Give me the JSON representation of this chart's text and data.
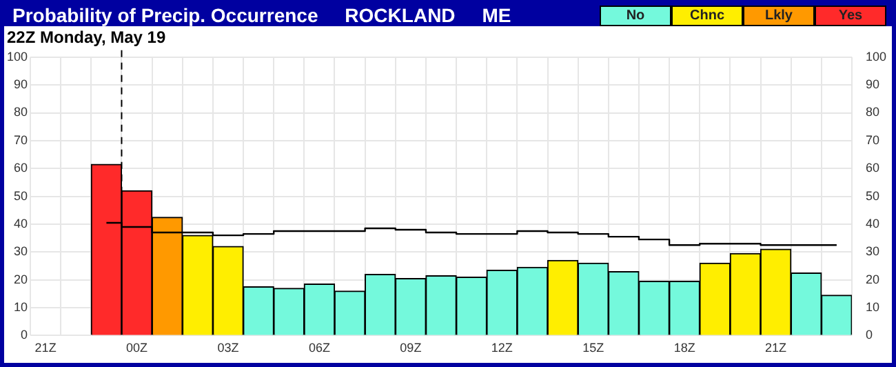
{
  "chart_data": {
    "type": "bar",
    "title": "Probability of Precip. Occurrence     ROCKLAND     ME",
    "subtitle": "22Z Monday, May 19",
    "categories": [
      "21Z",
      null,
      null,
      "00Z",
      null,
      null,
      "03Z",
      null,
      null,
      "06Z",
      null,
      null,
      "09Z",
      null,
      null,
      "12Z",
      null,
      null,
      "15Z",
      null,
      null,
      "18Z",
      null,
      null,
      "21Z",
      null,
      null
    ],
    "stacked": true,
    "series": [
      {
        "name": "No",
        "color": "#74f9dc",
        "values": [
          null,
          null,
          null,
          null,
          null,
          null,
          null,
          17.5,
          17,
          18.5,
          16,
          22,
          20.5,
          21.5,
          21,
          23.5,
          24.5,
          null,
          26,
          23,
          19.5,
          19.5,
          null,
          null,
          null,
          22.5,
          14.5
        ]
      },
      {
        "name": "Chnc",
        "color": "#ffee00",
        "values": [
          null,
          null,
          null,
          null,
          null,
          36,
          32,
          null,
          null,
          null,
          null,
          null,
          null,
          null,
          null,
          null,
          null,
          27,
          null,
          null,
          null,
          null,
          26,
          29.5,
          31,
          null,
          null
        ]
      },
      {
        "name": "Lkly",
        "color": "#ff9900",
        "values": [
          null,
          null,
          null,
          null,
          42.5,
          null,
          null,
          null,
          null,
          null,
          null,
          null,
          null,
          null,
          null,
          null,
          null,
          null,
          null,
          null,
          null,
          null,
          null,
          null,
          null,
          null,
          null
        ]
      },
      {
        "name": "Yes",
        "color": "#ff2a2a",
        "values": [
          null,
          null,
          61.5,
          52,
          null,
          null,
          null,
          null,
          null,
          null,
          null,
          null,
          null,
          null,
          null,
          null,
          null,
          null,
          null,
          null,
          null,
          null,
          null,
          null,
          null,
          null,
          null
        ]
      },
      {
        "type": "step",
        "color": "#000000",
        "values": [
          null,
          null,
          40.5,
          39,
          37,
          37,
          36,
          36.5,
          37.5,
          37.5,
          37.5,
          38.5,
          38,
          37,
          36.5,
          36.5,
          37.5,
          37,
          36.5,
          35.5,
          34.5,
          32.5,
          33,
          33,
          32.5,
          32.5,
          32.5
        ]
      }
    ],
    "ylim": [
      0,
      100
    ],
    "yticks": [
      0,
      10,
      20,
      30,
      40,
      50,
      60,
      70,
      80,
      90,
      100
    ],
    "y2lim": [
      0,
      100
    ],
    "y2ticks": [
      0,
      10,
      20,
      30,
      40,
      50,
      60,
      70,
      80,
      90,
      100
    ],
    "ref_lines": [
      {
        "axis": "x",
        "value": "00Z",
        "line_style": "dashed",
        "color": "#000000"
      }
    ],
    "grid": true,
    "legend": "top right"
  }
}
